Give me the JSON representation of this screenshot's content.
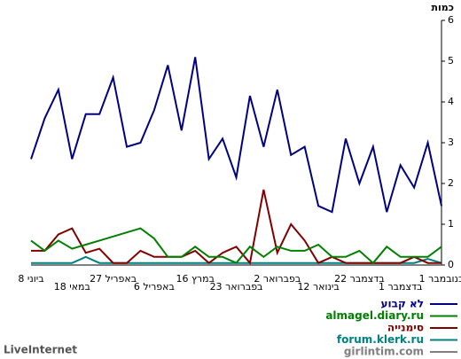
{
  "chart_data": {
    "type": "line",
    "title": "כמות",
    "credit": "LiveInternet",
    "categories": [
      "8 ביוני",
      null,
      null,
      "18 במאי",
      null,
      null,
      "27 באפריל",
      null,
      null,
      "6 באפריל",
      null,
      null,
      "16 במרץ",
      null,
      null,
      "23 בפברואר",
      null,
      null,
      "2 בפברואר",
      null,
      null,
      "12 בינואר",
      null,
      null,
      "22 בדצמבר",
      null,
      null,
      "1 בדצמבר",
      null,
      null,
      "1 בנובמבר"
    ],
    "ylim": [
      0,
      6
    ],
    "yticks": [
      0,
      1,
      2,
      3,
      4,
      5,
      6
    ],
    "series": [
      {
        "name": "לא קבוע",
        "color": "#000080",
        "values": [
          2.6,
          3.6,
          4.3,
          2.6,
          3.7,
          3.7,
          4.6,
          2.9,
          3.0,
          3.8,
          4.9,
          3.3,
          5.1,
          2.6,
          3.1,
          2.15,
          4.15,
          2.9,
          4.3,
          2.7,
          2.9,
          1.45,
          1.3,
          3.1,
          2.0,
          2.9,
          1.3,
          2.45,
          1.9,
          3.0,
          1.45
        ]
      },
      {
        "name": "almagel.diary.ru",
        "color": "#008000",
        "values": [
          0.6,
          0.35,
          0.6,
          0.4,
          0.5,
          0.6,
          0.7,
          0.8,
          0.9,
          0.65,
          0.2,
          0.2,
          0.45,
          0.2,
          0.2,
          0.05,
          0.45,
          0.2,
          0.45,
          0.35,
          0.35,
          0.5,
          0.2,
          0.2,
          0.35,
          0.05,
          0.45,
          0.2,
          0.2,
          0.2,
          0.45
        ]
      },
      {
        "name": "סימנייה",
        "color": "#800000",
        "values": [
          0.35,
          0.35,
          0.75,
          0.9,
          0.3,
          0.4,
          0.05,
          0.05,
          0.35,
          0.2,
          0.2,
          0.2,
          0.35,
          0.05,
          0.3,
          0.45,
          0.05,
          1.85,
          0.3,
          1.0,
          0.6,
          0.05,
          0.2,
          0.05,
          0.05,
          0.05,
          0.05,
          0.05,
          0.2,
          0.05,
          0.05
        ]
      },
      {
        "name": "forum.klerk.ru",
        "color": "#008080",
        "values": [
          0.05,
          0.05,
          0.05,
          0.05,
          0.2,
          0.05,
          0.05,
          0.05,
          0.05,
          0.05,
          0.05,
          0.05,
          0.05,
          0.05,
          0.05,
          0.05,
          0.05,
          0.05,
          0.05,
          0.05,
          0.05,
          0.05,
          0.05,
          0.05,
          0.05,
          0.05,
          0.05,
          0.05,
          0.05,
          0.15,
          0.05
        ]
      },
      {
        "name": "girlintim.com",
        "color": "#808080",
        "values": [
          0,
          0,
          0,
          0,
          0,
          0,
          0,
          0,
          0,
          0,
          0,
          0,
          0,
          0,
          0,
          0,
          0,
          0,
          0,
          0,
          0,
          0,
          0,
          0,
          0,
          0,
          0,
          0,
          0,
          0,
          0
        ]
      }
    ]
  }
}
